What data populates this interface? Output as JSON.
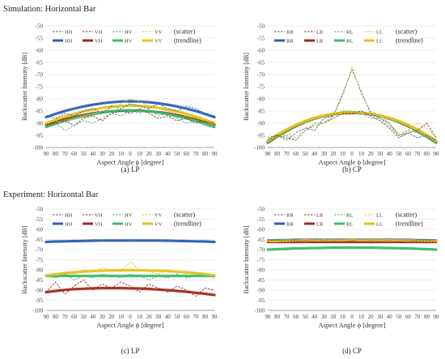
{
  "sections": {
    "simulation_title": "Simulation:  Horizontal Bar",
    "experiment_title": "Experiment:  Horizontal Bar"
  },
  "colors": {
    "HH": "#2e5fb4",
    "VH": "#a12a1c",
    "HV": "#3cbc70",
    "VV": "#e6c21a",
    "RR": "#2e5fb4",
    "LR": "#a12a1c",
    "RL": "#3cbc70",
    "LL": "#e6c21a"
  },
  "chart_data": [
    {
      "type": "line",
      "caption": "(a) LP",
      "xlabel": "Aspect Angle ϕ [degree]",
      "ylabel": "Backscatter Intensity [dB]",
      "x_ticks": [
        90,
        80,
        70,
        60,
        50,
        40,
        30,
        20,
        10,
        0,
        10,
        20,
        30,
        40,
        50,
        60,
        70,
        80,
        90
      ],
      "ylim": [
        -100,
        -50
      ],
      "y_ticks": [
        -50,
        -55,
        -60,
        -65,
        -70,
        -75,
        -80,
        -85,
        -90,
        -95,
        -100
      ],
      "legend_scatter_label": "(scatter)",
      "legend_trend_label": "(trendline)",
      "series": [
        {
          "name": "HH",
          "key": "HH",
          "scatter": [
            -87,
            -88,
            -86,
            -87,
            -85,
            -84,
            -86,
            -83,
            -84,
            -82,
            -83,
            -84,
            -82,
            -84,
            -85,
            -83,
            -84,
            -86,
            -87
          ],
          "trend": [
            -87.5,
            -86.2,
            -85,
            -84,
            -83.1,
            -82.4,
            -81.8,
            -81.4,
            -81.1,
            -81,
            -81.1,
            -81.4,
            -81.8,
            -82.4,
            -83.1,
            -84,
            -85,
            -86.2,
            -87.5
          ]
        },
        {
          "name": "VH",
          "key": "VH",
          "scatter": [
            -91,
            -90,
            -89,
            -91,
            -88,
            -87,
            -89,
            -86,
            -85,
            -86,
            -84,
            -86,
            -88,
            -87,
            -89,
            -88,
            -90,
            -89,
            -90
          ],
          "trend": [
            -90.5,
            -89.4,
            -88.4,
            -87.5,
            -86.7,
            -86,
            -85.5,
            -85.1,
            -84.9,
            -84.8,
            -84.9,
            -85.1,
            -85.5,
            -86,
            -86.7,
            -87.5,
            -88.4,
            -89.4,
            -90.5
          ]
        },
        {
          "name": "HV",
          "key": "HV",
          "scatter": [
            -92,
            -90,
            -93,
            -91,
            -89,
            -90,
            -88,
            -86,
            -87,
            -85,
            -86,
            -84,
            -87,
            -86,
            -88,
            -90,
            -89,
            -91,
            -92
          ],
          "trend": [
            -91.5,
            -90.2,
            -89,
            -88,
            -87.1,
            -86.3,
            -85.6,
            -85.1,
            -84.8,
            -84.7,
            -84.8,
            -85.1,
            -85.6,
            -86.3,
            -87.1,
            -88,
            -89,
            -90.2,
            -91.5
          ]
        },
        {
          "name": "VV",
          "key": "VV",
          "scatter": [
            -90,
            -89,
            -90,
            -88,
            -87,
            -86,
            -85,
            -84,
            -82,
            -80,
            -81,
            -83,
            -84,
            -85,
            -86,
            -87,
            -88,
            -89,
            -91
          ],
          "trend": [
            -90,
            -88.6,
            -87.3,
            -86.2,
            -85.2,
            -84.4,
            -83.7,
            -83.2,
            -82.9,
            -82.8,
            -82.9,
            -83.2,
            -83.7,
            -84.4,
            -85.2,
            -86.2,
            -87.3,
            -88.6,
            -90
          ]
        }
      ]
    },
    {
      "type": "line",
      "caption": "(b)  CP",
      "xlabel": "Aspect Angle ϕ [degree]",
      "ylabel": "Backscatter Intensity [dB]",
      "x_ticks": [
        90,
        80,
        70,
        60,
        50,
        40,
        30,
        20,
        10,
        0,
        10,
        20,
        30,
        40,
        50,
        60,
        70,
        80,
        90
      ],
      "ylim": [
        -100,
        -50
      ],
      "y_ticks": [
        -50,
        -55,
        -60,
        -65,
        -70,
        -75,
        -80,
        -85,
        -90,
        -95,
        -100
      ],
      "legend_scatter_label": "(scatter)",
      "legend_trend_label": "(trendline)",
      "series": [
        {
          "name": "RR",
          "key": "RR",
          "scatter": [
            -96,
            -95,
            -97,
            -94,
            -92,
            -93,
            -88,
            -87,
            -78,
            -68,
            -77,
            -86,
            -88,
            -90,
            -95,
            -94,
            -96,
            -95,
            -97
          ],
          "trend": [
            -97.5,
            -95,
            -92.8,
            -90.9,
            -89.3,
            -88,
            -87,
            -86.3,
            -85.9,
            -85.8,
            -85.9,
            -86.3,
            -87,
            -88,
            -89.3,
            -90.9,
            -92.8,
            -95,
            -97.5
          ]
        },
        {
          "name": "LR",
          "key": "LR",
          "scatter": [
            -97,
            -95,
            -96,
            -97,
            -93,
            -91,
            -90,
            -88,
            -86,
            -86,
            -85,
            -87,
            -89,
            -92,
            -96,
            -94,
            -93,
            -90,
            -96
          ],
          "trend": [
            -98,
            -95.5,
            -93.2,
            -91.2,
            -89.5,
            -88.1,
            -87,
            -86.2,
            -85.8,
            -85.7,
            -85.8,
            -86.2,
            -87,
            -88.1,
            -89.5,
            -91.2,
            -93.2,
            -95.5,
            -98
          ]
        },
        {
          "name": "RL",
          "key": "RL",
          "scatter": [
            -97,
            -96,
            -95,
            -97,
            -93,
            -90,
            -90,
            -87,
            -85,
            -85,
            -86,
            -88,
            -88,
            -91,
            -95,
            -93,
            -94,
            -96,
            -97
          ],
          "trend": [
            -97.8,
            -95.3,
            -93,
            -91,
            -89.4,
            -88,
            -86.9,
            -86.2,
            -85.7,
            -85.6,
            -85.7,
            -86.2,
            -86.9,
            -88,
            -89.4,
            -91,
            -93,
            -95.3,
            -97.8
          ]
        },
        {
          "name": "LL",
          "key": "LL",
          "scatter": [
            -96,
            -96,
            -94,
            -96,
            -92,
            -91,
            -90,
            -87,
            -79,
            -67,
            -78,
            -85,
            -87,
            -90,
            -94,
            -93,
            -90,
            -92,
            -96
          ],
          "trend": [
            -97.2,
            -94.8,
            -92.6,
            -90.7,
            -89.1,
            -87.8,
            -86.8,
            -86.1,
            -85.7,
            -85.6,
            -85.7,
            -86.1,
            -86.8,
            -87.8,
            -89.1,
            -90.7,
            -92.6,
            -94.8,
            -97.2
          ]
        }
      ]
    },
    {
      "type": "line",
      "caption": "(c) LP",
      "xlabel": "Aspect Angle ϕ [degree]",
      "ylabel": "Backscatter Intensity [dB]",
      "x_ticks": [
        90,
        80,
        70,
        60,
        50,
        40,
        30,
        20,
        10,
        0,
        10,
        20,
        30,
        40,
        50,
        60,
        70,
        80,
        90
      ],
      "ylim": [
        -100,
        -50
      ],
      "y_ticks": [
        -50,
        -55,
        -60,
        -65,
        -70,
        -75,
        -80,
        -85,
        -90,
        -95,
        -100
      ],
      "legend_scatter_label": "(scatter)",
      "legend_trend_label": "(trendline)",
      "series": [
        {
          "name": "HH",
          "key": "HH",
          "scatter": [
            -66,
            -65.8,
            -66,
            -65.7,
            -65.9,
            -65.6,
            -65.8,
            -65.5,
            -65.7,
            -65.2,
            -65.5,
            -65.6,
            -65.8,
            -65.9,
            -65.7,
            -66,
            -65.8,
            -66.1,
            -66.2
          ],
          "trend": [
            -66.2,
            -66,
            -65.9,
            -65.8,
            -65.7,
            -65.6,
            -65.5,
            -65.5,
            -65.5,
            -65.5,
            -65.5,
            -65.5,
            -65.5,
            -65.6,
            -65.7,
            -65.8,
            -65.9,
            -66,
            -66.2
          ]
        },
        {
          "name": "VH",
          "key": "VH",
          "scatter": [
            -91,
            -86,
            -92,
            -88,
            -85,
            -90,
            -87,
            -89,
            -86,
            -88,
            -91,
            -87,
            -89,
            -91,
            -88,
            -90,
            -93,
            -89,
            -90
          ],
          "trend": [
            -91,
            -90.4,
            -89.9,
            -89.5,
            -89.3,
            -89.1,
            -89,
            -89,
            -89,
            -89.1,
            -89.2,
            -89.4,
            -89.7,
            -90,
            -90.4,
            -90.8,
            -91.3,
            -91.8,
            -92.4
          ]
        },
        {
          "name": "HV",
          "key": "HV",
          "scatter": [
            -83,
            -84,
            -82,
            -85,
            -83,
            -84,
            -82,
            -83,
            -84,
            -82,
            -83,
            -85,
            -83,
            -84,
            -82,
            -84,
            -83,
            -82,
            -84
          ],
          "trend": [
            -83,
            -83,
            -83,
            -83,
            -83,
            -83,
            -83,
            -83,
            -83,
            -83,
            -83,
            -83,
            -83,
            -83,
            -83,
            -83,
            -83,
            -83,
            -83
          ]
        },
        {
          "name": "VV",
          "key": "VV",
          "scatter": [
            -83,
            -82,
            -81,
            -82,
            -80,
            -81,
            -79,
            -80,
            -81,
            -76,
            -80,
            -81,
            -82,
            -80,
            -81,
            -82,
            -81,
            -82,
            -83
          ],
          "trend": [
            -82.8,
            -82.2,
            -81.6,
            -81.2,
            -80.9,
            -80.6,
            -80.4,
            -80.3,
            -80.2,
            -80.2,
            -80.2,
            -80.3,
            -80.4,
            -80.6,
            -80.9,
            -81.2,
            -81.6,
            -82.2,
            -82.8
          ]
        }
      ]
    },
    {
      "type": "line",
      "caption": "(d)  CP",
      "xlabel": "Aspect Angle ϕ [degree]",
      "ylabel": "Backscatter Intensity [dB]",
      "x_ticks": [
        90,
        80,
        70,
        60,
        50,
        40,
        30,
        20,
        10,
        0,
        10,
        20,
        30,
        40,
        50,
        60,
        70,
        80,
        90
      ],
      "ylim": [
        -100,
        -50
      ],
      "y_ticks": [
        -50,
        -55,
        -60,
        -65,
        -70,
        -75,
        -80,
        -85,
        -90,
        -95,
        -100
      ],
      "legend_scatter_label": "(scatter)",
      "legend_trend_label": "(trendline)",
      "series": [
        {
          "name": "RR",
          "key": "RR",
          "scatter": [
            -65.5,
            -65.3,
            -65.6,
            -65.2,
            -65.4,
            -65.1,
            -65.3,
            -65,
            -65.2,
            -64.8,
            -65.1,
            -65.3,
            -65.2,
            -65.4,
            -65.1,
            -65.5,
            -65.2,
            -65.4,
            -65.5
          ],
          "trend": [
            -65.5,
            -65.4,
            -65.3,
            -65.2,
            -65.2,
            -65.1,
            -65.1,
            -65.1,
            -65.1,
            -65.1,
            -65.1,
            -65.1,
            -65.1,
            -65.1,
            -65.2,
            -65.2,
            -65.3,
            -65.4,
            -65.5
          ]
        },
        {
          "name": "LR",
          "key": "LR",
          "scatter": [
            -66,
            -65.5,
            -66.5,
            -65.8,
            -66.4,
            -65.9,
            -66.6,
            -66,
            -66.2,
            -65.7,
            -66.3,
            -66.8,
            -66.1,
            -66.5,
            -66,
            -66.3,
            -65.9,
            -66.2,
            -66.1
          ],
          "trend": [
            -66.2,
            -66.2,
            -66.2,
            -66.2,
            -66.2,
            -66.2,
            -66.2,
            -66.2,
            -66.2,
            -66.2,
            -66.2,
            -66.2,
            -66.2,
            -66.2,
            -66.2,
            -66.2,
            -66.2,
            -66.2,
            -66.2
          ]
        },
        {
          "name": "RL",
          "key": "RL",
          "scatter": [
            -70,
            -69.5,
            -70.2,
            -69.6,
            -69.8,
            -69.3,
            -69.5,
            -69,
            -69.2,
            -68.8,
            -69.1,
            -69.3,
            -69.2,
            -69.5,
            -69.3,
            -69.6,
            -69.4,
            -69.8,
            -70
          ],
          "trend": [
            -70,
            -69.8,
            -69.6,
            -69.4,
            -69.3,
            -69.2,
            -69.1,
            -69,
            -69,
            -69,
            -69,
            -69,
            -69.1,
            -69.2,
            -69.3,
            -69.4,
            -69.6,
            -69.8,
            -70
          ]
        },
        {
          "name": "LL",
          "key": "LL",
          "scatter": [
            -65.8,
            -65.6,
            -65.9,
            -65.5,
            -65.7,
            -65.4,
            -65.6,
            -65.2,
            -65.4,
            -64.8,
            -65.3,
            -65.5,
            -65.4,
            -65.6,
            -65.3,
            -65.7,
            -65.5,
            -65.7,
            -65.8
          ],
          "trend": [
            -65.8,
            -65.7,
            -65.6,
            -65.5,
            -65.4,
            -65.4,
            -65.3,
            -65.3,
            -65.3,
            -65.3,
            -65.3,
            -65.3,
            -65.3,
            -65.4,
            -65.4,
            -65.5,
            -65.6,
            -65.7,
            -65.8
          ]
        }
      ]
    }
  ]
}
